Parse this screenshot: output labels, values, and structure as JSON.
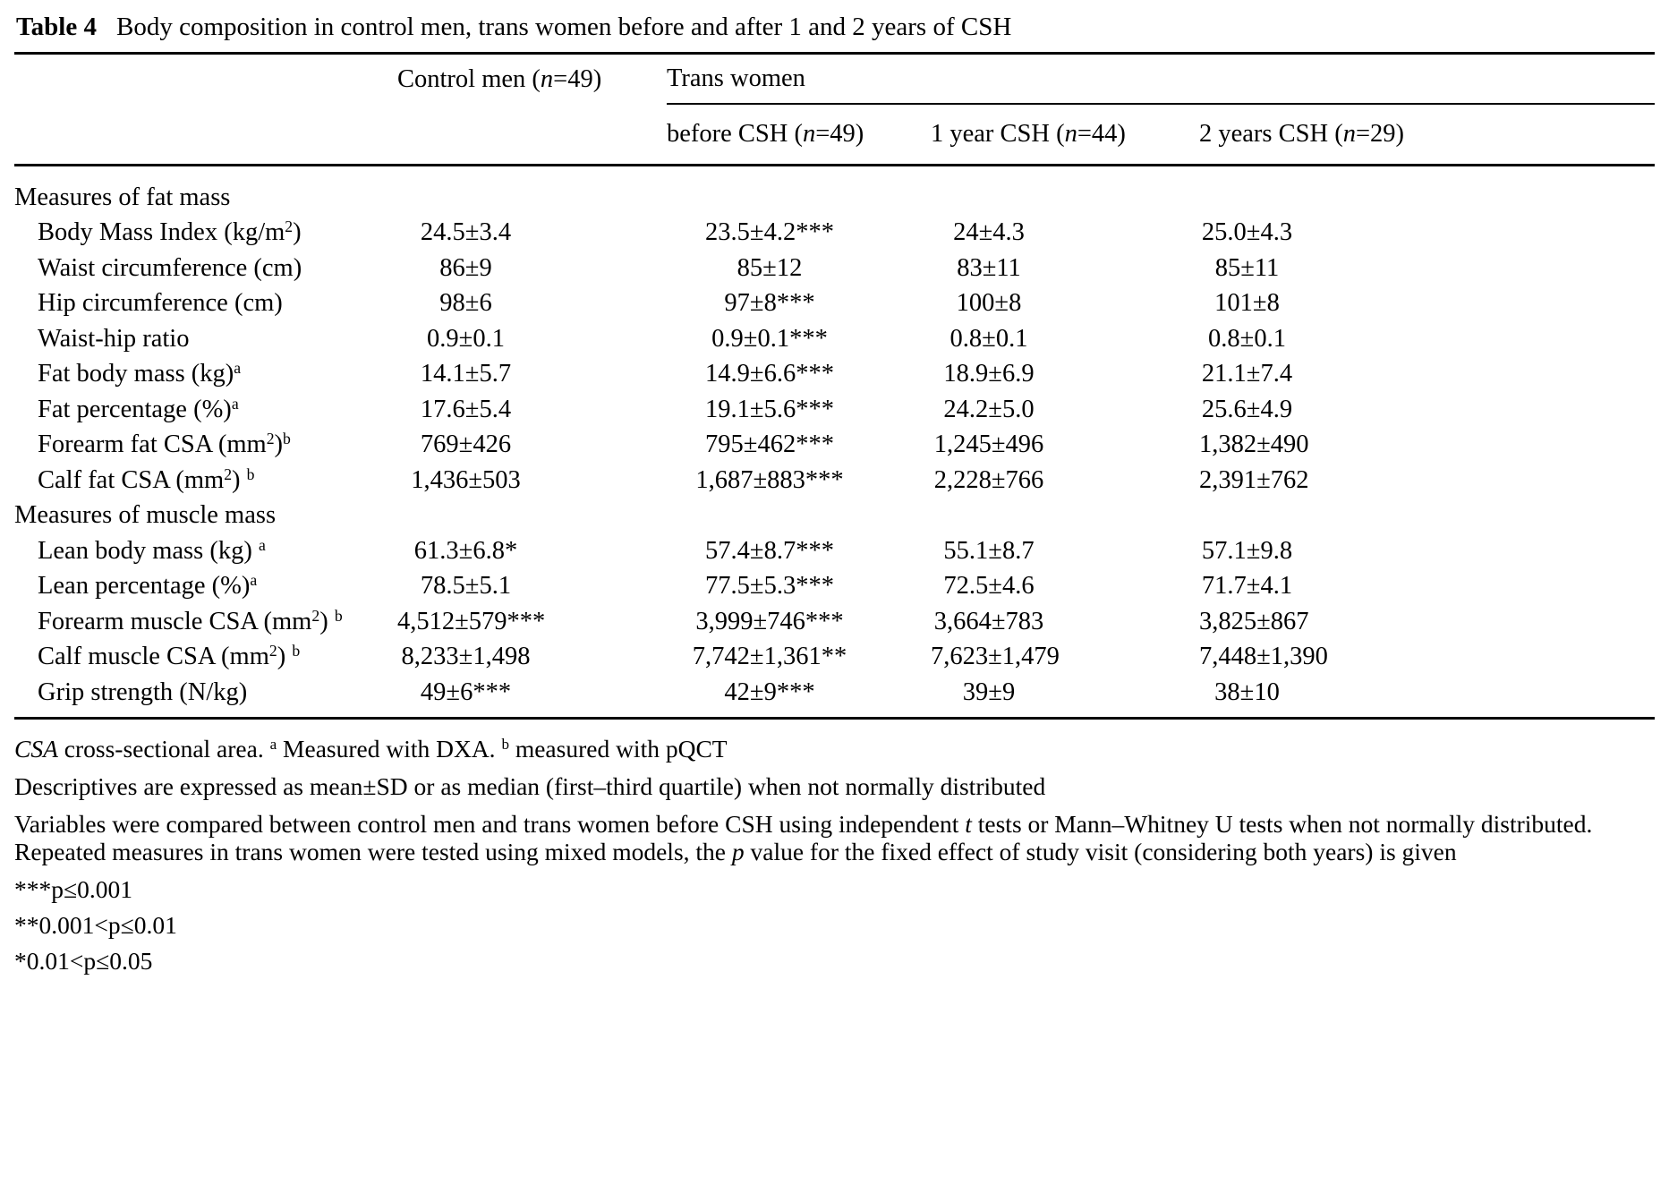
{
  "title": {
    "label": "Table 4",
    "text": "Body composition in control men, trans women before and after 1 and 2 years of CSH"
  },
  "header": {
    "control": [
      {
        "t": "Control men ("
      },
      {
        "t": "n",
        "i": 1
      },
      {
        "t": "=49)"
      }
    ],
    "group": "Trans women",
    "subcols": [
      [
        {
          "t": "before CSH ("
        },
        {
          "t": "n",
          "i": 1
        },
        {
          "t": "=49)"
        }
      ],
      [
        {
          "t": "1 year CSH ("
        },
        {
          "t": "n",
          "i": 1
        },
        {
          "t": "=44)"
        }
      ],
      [
        {
          "t": "2 years CSH ("
        },
        {
          "t": "n",
          "i": 1
        },
        {
          "t": "=29)"
        }
      ]
    ]
  },
  "rows": [
    {
      "type": "section",
      "label": [
        {
          "t": "Measures of fat mass"
        }
      ]
    },
    {
      "type": "data",
      "label": [
        {
          "t": "Body Mass Index (kg/m"
        },
        {
          "t": "2",
          "sup": 1
        },
        {
          "t": ")"
        }
      ],
      "values": [
        "24.5±3.4",
        "23.5±4.2***",
        "24±4.3",
        "25.0±4.3"
      ]
    },
    {
      "type": "data",
      "label": [
        {
          "t": "Waist circumference (cm)"
        }
      ],
      "values": [
        "86±9",
        "85±12",
        "83±11",
        "85±11"
      ]
    },
    {
      "type": "data",
      "label": [
        {
          "t": "Hip circumference (cm)"
        }
      ],
      "values": [
        "98±6",
        "97±8***",
        "100±8",
        "101±8"
      ]
    },
    {
      "type": "data",
      "label": [
        {
          "t": "Waist-hip ratio"
        }
      ],
      "values": [
        "0.9±0.1",
        "0.9±0.1***",
        "0.8±0.1",
        "0.8±0.1"
      ]
    },
    {
      "type": "data",
      "label": [
        {
          "t": "Fat body mass (kg)"
        },
        {
          "t": "a",
          "sup": 1
        }
      ],
      "values": [
        "14.1±5.7",
        "14.9±6.6***",
        "18.9±6.9",
        "21.1±7.4"
      ]
    },
    {
      "type": "data",
      "label": [
        {
          "t": "Fat percentage (%)"
        },
        {
          "t": "a",
          "sup": 1
        }
      ],
      "values": [
        "17.6±5.4",
        "19.1±5.6***",
        "24.2±5.0",
        "25.6±4.9"
      ]
    },
    {
      "type": "data",
      "label": [
        {
          "t": "Forearm fat CSA (mm"
        },
        {
          "t": "2",
          "sup": 1
        },
        {
          "t": ")"
        },
        {
          "t": "b",
          "sup": 1
        }
      ],
      "values": [
        "769±426",
        "795±462***",
        "1,245±496",
        "1,382±490"
      ]
    },
    {
      "type": "data",
      "label": [
        {
          "t": "Calf fat CSA (mm"
        },
        {
          "t": "2",
          "sup": 1
        },
        {
          "t": ") "
        },
        {
          "t": "b",
          "sup": 1
        }
      ],
      "values": [
        "1,436±503",
        "1,687±883***",
        "2,228±766",
        "2,391±762"
      ]
    },
    {
      "type": "section",
      "label": [
        {
          "t": "Measures of muscle mass"
        }
      ]
    },
    {
      "type": "data",
      "label": [
        {
          "t": "Lean body mass (kg) "
        },
        {
          "t": "a",
          "sup": 1
        }
      ],
      "values": [
        "61.3±6.8*",
        "57.4±8.7***",
        "55.1±8.7",
        "57.1±9.8"
      ]
    },
    {
      "type": "data",
      "label": [
        {
          "t": "Lean percentage (%)"
        },
        {
          "t": "a",
          "sup": 1
        }
      ],
      "values": [
        "78.5±5.1",
        "77.5±5.3***",
        "72.5±4.6",
        "71.7±4.1"
      ]
    },
    {
      "type": "data",
      "label": [
        {
          "t": "Forearm muscle CSA (mm"
        },
        {
          "t": "2",
          "sup": 1
        },
        {
          "t": ") "
        },
        {
          "t": "b",
          "sup": 1
        }
      ],
      "values": [
        "4,512±579***",
        "3,999±746***",
        "3,664±783",
        "3,825±867"
      ]
    },
    {
      "type": "data",
      "label": [
        {
          "t": "Calf muscle CSA (mm"
        },
        {
          "t": "2",
          "sup": 1
        },
        {
          "t": ") "
        },
        {
          "t": "b",
          "sup": 1
        }
      ],
      "values": [
        "8,233±1,498",
        "7,742±1,361**",
        "7,623±1,479",
        "7,448±1,390"
      ]
    },
    {
      "type": "data",
      "label": [
        {
          "t": "Grip strength (N/kg)"
        }
      ],
      "values": [
        "49±6***",
        "42±9***",
        "39±9",
        "38±10"
      ]
    }
  ],
  "footnotes": {
    "notes": [
      [
        {
          "t": "CSA",
          "i": 1
        },
        {
          "t": " cross-sectional area. "
        },
        {
          "t": "a",
          "sup": 1
        },
        {
          "t": " Measured with DXA. "
        },
        {
          "t": "b",
          "sup": 1
        },
        {
          "t": " measured with pQCT"
        }
      ],
      [
        {
          "t": "Descriptives are expressed as mean±SD or as median (first–third quartile) when not normally distributed"
        }
      ],
      [
        {
          "t": "Variables were compared between control men and trans women before CSH using independent "
        },
        {
          "t": "t",
          "i": 1
        },
        {
          "t": " tests or Mann–Whitney U tests when not normally distributed. Repeated measures in trans women were tested using mixed models, the "
        },
        {
          "t": "p",
          "i": 1
        },
        {
          "t": " value for the fixed effect of study visit (considering both years) is given"
        }
      ]
    ],
    "significance": [
      "***p≤0.001",
      "**0.001<p≤0.01",
      "*0.01<p≤0.05"
    ]
  }
}
